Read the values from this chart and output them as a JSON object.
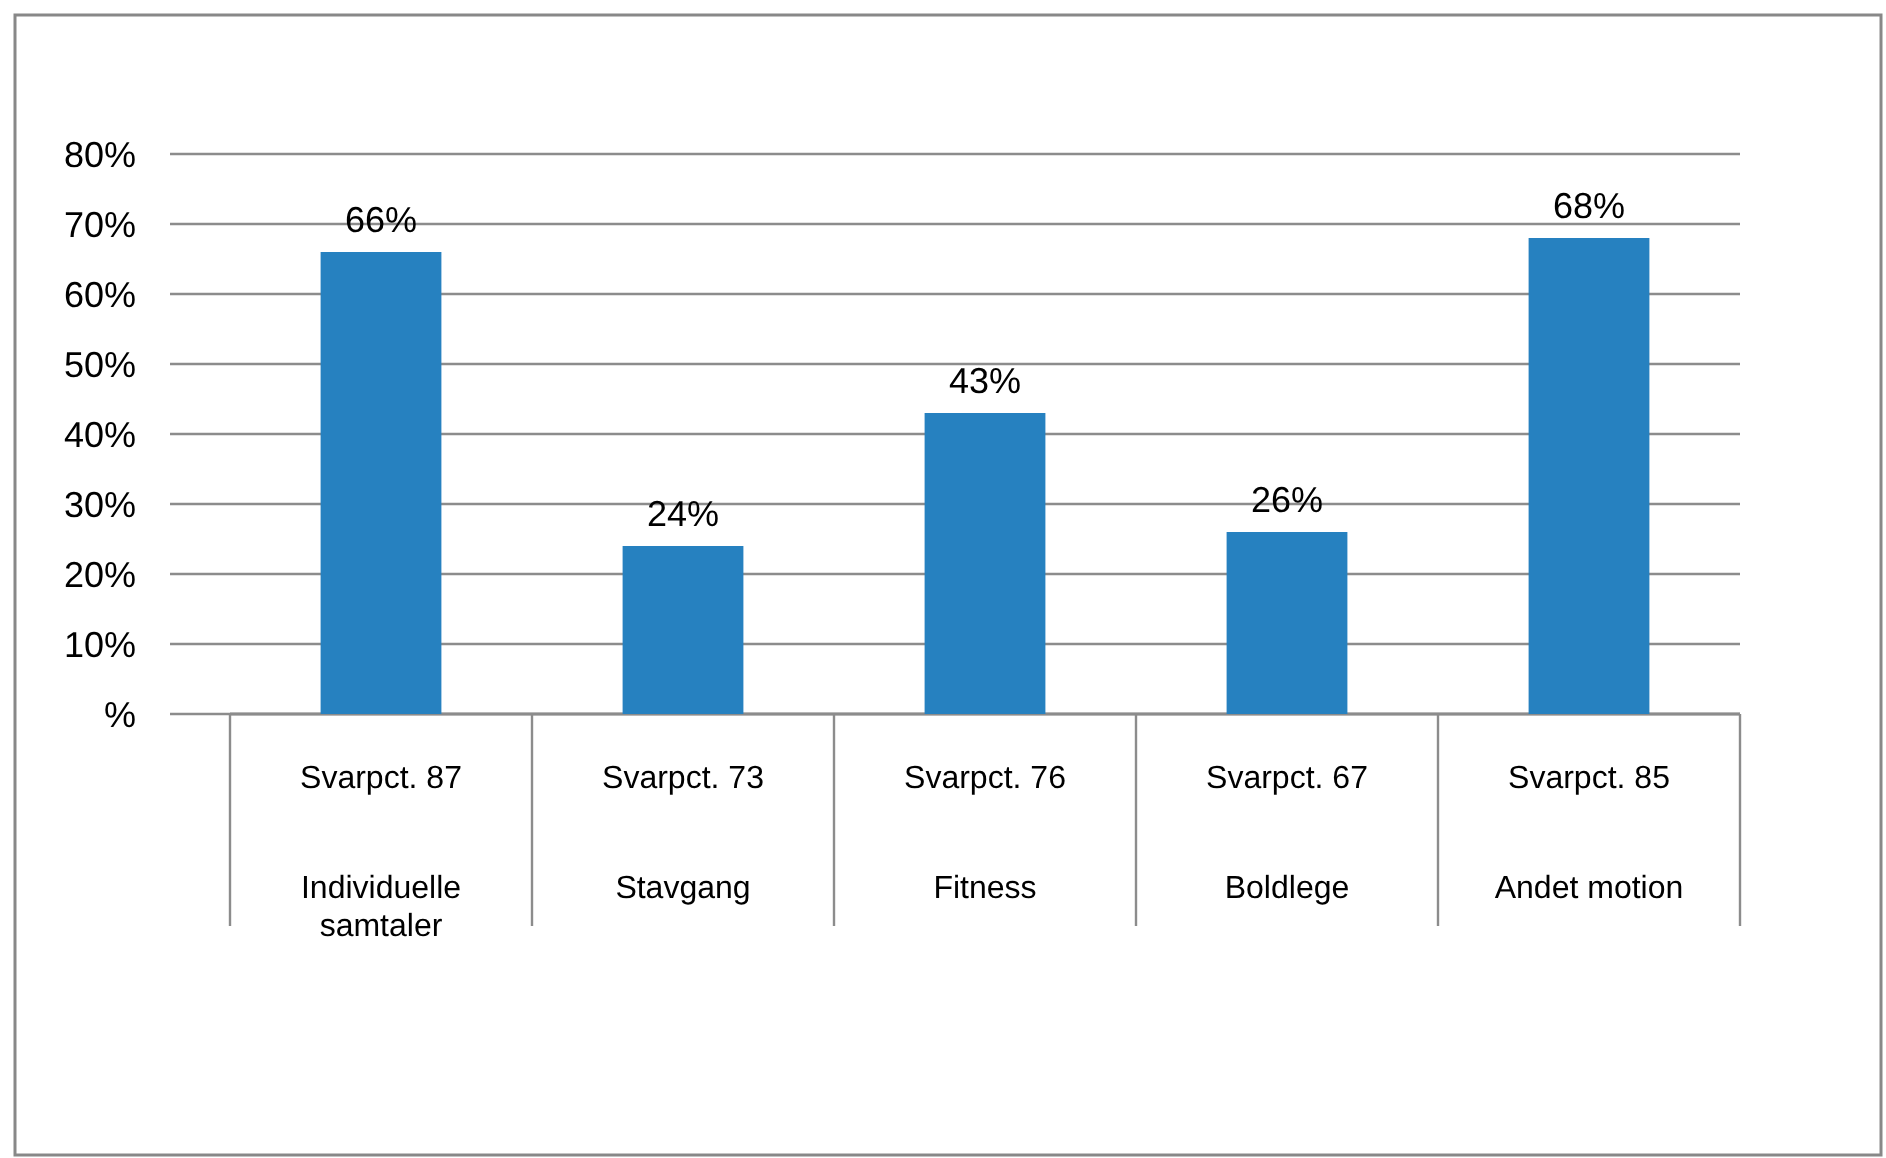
{
  "chart_data": {
    "type": "bar",
    "categories": [
      "Individuelle samtaler",
      "Stavgang",
      "Fitness",
      "Boldlege",
      "Andet motion"
    ],
    "values": [
      66,
      24,
      43,
      26,
      68
    ],
    "value_labels": [
      "66%",
      "24%",
      "43%",
      "26%",
      "68%"
    ],
    "color": "#2681c0",
    "ylim": [
      0,
      80
    ],
    "yticks": [
      {
        "value": 0,
        "label": "%"
      },
      {
        "value": 10,
        "label": "10%"
      },
      {
        "value": 20,
        "label": "20%"
      },
      {
        "value": 30,
        "label": "30%"
      },
      {
        "value": 40,
        "label": "40%"
      },
      {
        "value": 50,
        "label": "50%"
      },
      {
        "value": 60,
        "label": "60%"
      },
      {
        "value": 70,
        "label": "70%"
      },
      {
        "value": 80,
        "label": "80%"
      }
    ],
    "grid": "y",
    "annotations": [
      "Svarpct. 87",
      "Svarpct. 73",
      "Svarpct. 76",
      "Svarpct. 67",
      "Svarpct. 85"
    ]
  }
}
